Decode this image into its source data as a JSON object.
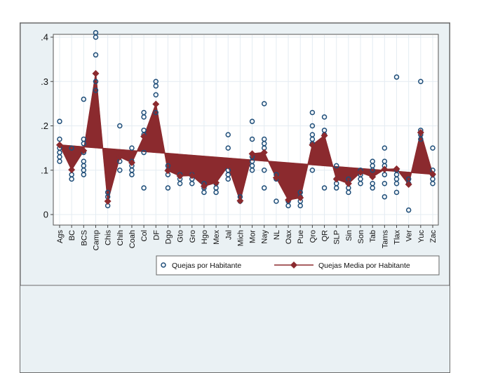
{
  "chart_data": {
    "type": "scatter",
    "title": "",
    "xlabel": "",
    "ylabel": "",
    "ylim": [
      0,
      0.42
    ],
    "yticks": [
      0,
      0.1,
      0.2,
      0.3,
      0.4
    ],
    "ytick_labels": [
      "0",
      ".1",
      ".2",
      ".3",
      ".4"
    ],
    "grid": true,
    "legend_position": "bottom",
    "categories": [
      "Ags",
      "BC",
      "BCS",
      "Camp",
      "Chis",
      "Chih",
      "Coah",
      "Col",
      "DF",
      "Dgo",
      "Gto",
      "Gro",
      "Hgo",
      "Mex",
      "Jal",
      "Mich",
      "Mor",
      "Nay",
      "NL",
      "Oax",
      "Pue",
      "Qro",
      "QR",
      "SLP",
      "Sin",
      "Son",
      "Tab",
      "Tams",
      "Tlax",
      "Ver",
      "Yuc",
      "Zac"
    ],
    "series": [
      {
        "name": "Quejas por Habitante",
        "kind": "scatter",
        "color": "#1f4e79",
        "points": [
          [
            0.21,
            0.17,
            0.15,
            0.14,
            0.13,
            0.12
          ],
          [
            0.15,
            0.09,
            0.08
          ],
          [
            0.26,
            0.17,
            0.16,
            0.14,
            0.12,
            0.11,
            0.1,
            0.09
          ],
          [
            0.41,
            0.4,
            0.36,
            0.3,
            0.28
          ],
          [
            0.05,
            0.04,
            0.02
          ],
          [
            0.2,
            0.12,
            0.1
          ],
          [
            0.15,
            0.12,
            0.11,
            0.1,
            0.09
          ],
          [
            0.23,
            0.22,
            0.19,
            0.18,
            0.14,
            0.06
          ],
          [
            0.3,
            0.29,
            0.27,
            0.23
          ],
          [
            0.11,
            0.1,
            0.09,
            0.06
          ],
          [
            0.09,
            0.08,
            0.07
          ],
          [
            0.09,
            0.08,
            0.07
          ],
          [
            0.07,
            0.06,
            0.05
          ],
          [
            0.07,
            0.06,
            0.05
          ],
          [
            0.18,
            0.15,
            0.1,
            0.09,
            0.08
          ],
          [
            0.04,
            0.03
          ],
          [
            0.21,
            0.17,
            0.13,
            0.12,
            0.11,
            0.1
          ],
          [
            0.25,
            0.17,
            0.16,
            0.15,
            0.1,
            0.06
          ],
          [
            0.09,
            0.08,
            0.03
          ],
          [
            0.03,
            0.02
          ],
          [
            0.05,
            0.04,
            0.03,
            0.02
          ],
          [
            0.23,
            0.2,
            0.18,
            0.17,
            0.16,
            0.1
          ],
          [
            0.22,
            0.19,
            0.18,
            0.06
          ],
          [
            0.11,
            0.08,
            0.07,
            0.06
          ],
          [
            0.08,
            0.07,
            0.06,
            0.05
          ],
          [
            0.1,
            0.09,
            0.08,
            0.07
          ],
          [
            0.12,
            0.11,
            0.1,
            0.07,
            0.06
          ],
          [
            0.15,
            0.12,
            0.11,
            0.09,
            0.07,
            0.04
          ],
          [
            0.31,
            0.1,
            0.09,
            0.08,
            0.07,
            0.05
          ],
          [
            0.08,
            0.07,
            0.01
          ],
          [
            0.3,
            0.19,
            0.18,
            0.17
          ],
          [
            0.15,
            0.1,
            0.09,
            0.08,
            0.07
          ]
        ]
      },
      {
        "name": "Quejas Media por Habitante",
        "kind": "line-marker",
        "color": "#8b2a2e",
        "values": [
          0.157,
          0.101,
          0.144,
          0.318,
          0.03,
          0.13,
          0.117,
          0.176,
          0.249,
          0.099,
          0.087,
          0.088,
          0.064,
          0.072,
          0.11,
          0.031,
          0.137,
          0.14,
          0.083,
          0.033,
          0.038,
          0.157,
          0.178,
          0.08,
          0.07,
          0.095,
          0.085,
          0.102,
          0.103,
          0.068,
          0.185,
          0.091
        ]
      },
      {
        "name": "Linear trend",
        "kind": "line",
        "color": "#8b2a2e",
        "from": 0.157,
        "to": 0.091
      }
    ]
  },
  "legend": {
    "items": [
      {
        "label": "Quejas por Habitante",
        "symbol": "hollow-circle"
      },
      {
        "label": "Quejas Media por Habitante",
        "symbol": "line-diamond"
      }
    ]
  }
}
